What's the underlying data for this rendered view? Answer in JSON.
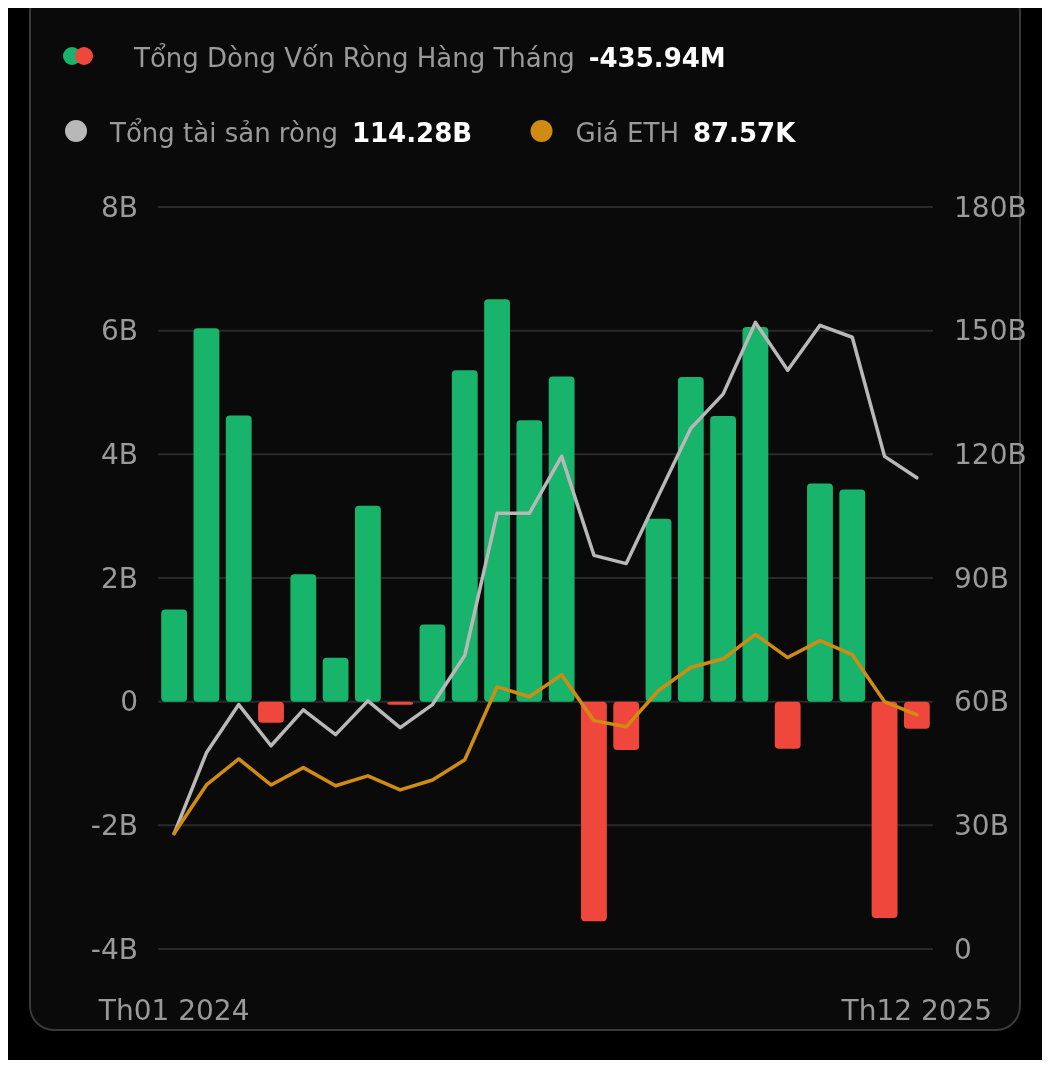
{
  "chart_data": {
    "type": "bar",
    "categories": [
      "Th01 2024",
      null,
      null,
      null,
      null,
      null,
      null,
      null,
      null,
      null,
      null,
      null,
      null,
      null,
      null,
      null,
      null,
      null,
      null,
      null,
      null,
      null,
      null,
      "Th12 2025"
    ],
    "series": [
      {
        "name": "Tổng Dòng Vốn Ròng Hàng Tháng",
        "colors": [
          "#19b46b",
          "#19b46b",
          "#19b46b",
          "#f0473c",
          "#19b46b",
          "#19b46b",
          "#19b46b",
          "#f0473c",
          "#19b46b",
          "#19b46b",
          "#19b46b",
          "#19b46b",
          "#19b46b",
          "#f0473c",
          "#f0473c",
          "#19b46b",
          "#19b46b",
          "#19b46b",
          "#19b46b",
          "#f0473c",
          "#19b46b",
          "#19b46b",
          "#f0473c",
          "#f0473c"
        ],
        "values": [
          1.49,
          6.04,
          4.63,
          -0.34,
          2.06,
          0.71,
          3.17,
          -0.05,
          1.25,
          5.36,
          6.51,
          4.55,
          5.26,
          -3.55,
          -0.78,
          2.96,
          5.25,
          4.62,
          6.06,
          -0.76,
          3.53,
          3.43,
          -3.5,
          -0.44
        ]
      },
      {
        "name": "Tổng tài sản ròng",
        "type": "line",
        "axis": "y2",
        "color": "#b8b8b8",
        "values": [
          28,
          47.6,
          59.3,
          49.3,
          58,
          52,
          60.2,
          53.7,
          59.3,
          71.2,
          105.7,
          105.7,
          119.5,
          95.5,
          93.5,
          110,
          126.3,
          134.6,
          152,
          140.4,
          151.3,
          148.4,
          119.5,
          114.3
        ]
      },
      {
        "name": "Giá ETH",
        "type": "line",
        "axis": "y2",
        "color": "#d08c12",
        "values": [
          28,
          39.8,
          46.1,
          39.8,
          44,
          39.6,
          42,
          38.6,
          41,
          45.9,
          63.6,
          61.2,
          66.5,
          55.4,
          53.9,
          62.7,
          68.3,
          70.4,
          76.3,
          70.7,
          74.8,
          71.4,
          60,
          56.8
        ]
      }
    ],
    "ylim": [
      -4,
      8
    ],
    "yticks": [
      {
        "value": -4,
        "label": "-4B"
      },
      {
        "value": -2,
        "label": "-2B"
      },
      {
        "value": 0,
        "label": "0"
      },
      {
        "value": 2,
        "label": "2B"
      },
      {
        "value": 4,
        "label": "4B"
      },
      {
        "value": 6,
        "label": "6B"
      },
      {
        "value": 8,
        "label": "8B"
      }
    ],
    "y2lim": [
      0,
      180
    ],
    "y2ticks": [
      0,
      {
        "value": 30,
        "label": "30B"
      },
      {
        "value": 60,
        "label": "60B"
      },
      {
        "value": 90,
        "label": "90B"
      },
      {
        "value": 120,
        "label": "120B"
      },
      {
        "value": 150,
        "label": "150B"
      },
      {
        "value": 180,
        "label": "180B"
      }
    ],
    "annotations": [
      "-435.94M",
      "114.28B",
      "87.57K"
    ],
    "grid": "y",
    "legend": "top left",
    "marker": "none",
    "line_style": "solid"
  }
}
